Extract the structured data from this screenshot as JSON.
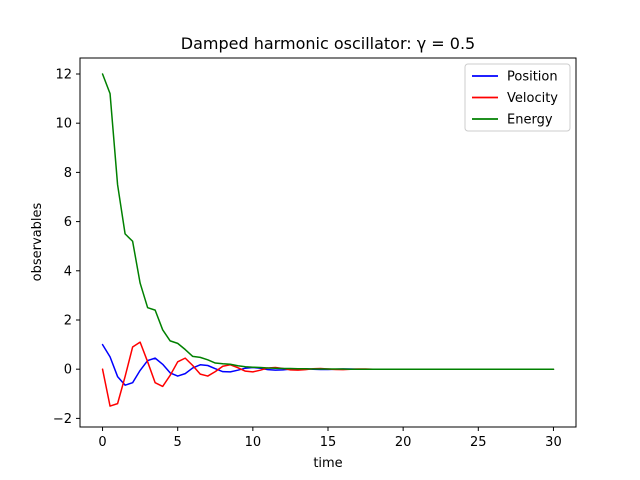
{
  "chart_data": {
    "type": "line",
    "title": "Damped harmonic oscillator: γ = 0.5",
    "xlabel": "time",
    "ylabel": "observables",
    "xlim": [
      -1.5,
      31.5
    ],
    "ylim": [
      -2.35,
      12.65
    ],
    "xticks": [
      0,
      5,
      10,
      15,
      20,
      25,
      30
    ],
    "yticks": [
      -2,
      0,
      2,
      4,
      6,
      8,
      10,
      12
    ],
    "xtick_labels": [
      "0",
      "5",
      "10",
      "15",
      "20",
      "25",
      "30"
    ],
    "ytick_labels": [
      "−2",
      "0",
      "2",
      "4",
      "6",
      "8",
      "10",
      "12"
    ],
    "grid": false,
    "legend_position": "top-right",
    "x": [
      0,
      0.5,
      1,
      1.5,
      2,
      2.5,
      3,
      3.5,
      4,
      4.5,
      5,
      5.5,
      6,
      6.5,
      7,
      7.5,
      8,
      8.5,
      9,
      9.5,
      10,
      10.5,
      11,
      11.5,
      12,
      12.5,
      13,
      13.5,
      14,
      14.5,
      15,
      15.5,
      16,
      16.5,
      17,
      17.5,
      18,
      18.5,
      19,
      19.5,
      20,
      20.5,
      21,
      21.5,
      22,
      22.5,
      23,
      23.5,
      24,
      24.5,
      25,
      25.5,
      26,
      26.5,
      27,
      27.5,
      28,
      28.5,
      29,
      29.5,
      30
    ],
    "series": [
      {
        "name": "Position",
        "color": "#0000ff",
        "values": [
          1.0,
          0.5,
          -0.3,
          -0.65,
          -0.55,
          -0.05,
          0.35,
          0.45,
          0.2,
          -0.15,
          -0.28,
          -0.18,
          0.05,
          0.18,
          0.15,
          0.02,
          -0.1,
          -0.11,
          -0.04,
          0.04,
          0.07,
          0.04,
          -0.02,
          -0.04,
          -0.03,
          0.0,
          0.02,
          0.02,
          0.0,
          -0.01,
          -0.01,
          0.0,
          0.01,
          0.01,
          0.0,
          0.0,
          0.0,
          0.0,
          0.0,
          0.0,
          0.0,
          0.0,
          0.0,
          0.0,
          0.0,
          0.0,
          0.0,
          0.0,
          0.0,
          0.0,
          0.0,
          0.0,
          0.0,
          0.0,
          0.0,
          0.0,
          0.0,
          0.0,
          0.0,
          0.0,
          0.0
        ]
      },
      {
        "name": "Velocity",
        "color": "#ff0000",
        "values": [
          0.0,
          -1.5,
          -1.4,
          -0.3,
          0.9,
          1.1,
          0.3,
          -0.55,
          -0.7,
          -0.25,
          0.3,
          0.45,
          0.15,
          -0.2,
          -0.28,
          -0.1,
          0.12,
          0.18,
          0.06,
          -0.08,
          -0.11,
          -0.04,
          0.05,
          0.07,
          0.03,
          -0.03,
          -0.04,
          -0.02,
          0.02,
          0.03,
          0.01,
          -0.01,
          -0.02,
          0.0,
          0.01,
          0.01,
          0.0,
          0.0,
          0.0,
          0.0,
          0.0,
          0.0,
          0.0,
          0.0,
          0.0,
          0.0,
          0.0,
          0.0,
          0.0,
          0.0,
          0.0,
          0.0,
          0.0,
          0.0,
          0.0,
          0.0,
          0.0,
          0.0,
          0.0,
          0.0,
          0.0
        ]
      },
      {
        "name": "Energy",
        "color": "#008000",
        "values": [
          12.0,
          11.2,
          7.5,
          5.5,
          5.2,
          3.5,
          2.5,
          2.4,
          1.6,
          1.15,
          1.05,
          0.8,
          0.52,
          0.48,
          0.38,
          0.25,
          0.22,
          0.2,
          0.14,
          0.1,
          0.08,
          0.07,
          0.05,
          0.04,
          0.03,
          0.03,
          0.02,
          0.02,
          0.01,
          0.01,
          0.01,
          0.01,
          0.01,
          0.0,
          0.0,
          0.0,
          0.0,
          0.0,
          0.0,
          0.0,
          0.0,
          0.0,
          0.0,
          0.0,
          0.0,
          0.0,
          0.0,
          0.0,
          0.0,
          0.0,
          0.0,
          0.0,
          0.0,
          0.0,
          0.0,
          0.0,
          0.0,
          0.0,
          0.0,
          0.0,
          0.0
        ]
      }
    ]
  }
}
